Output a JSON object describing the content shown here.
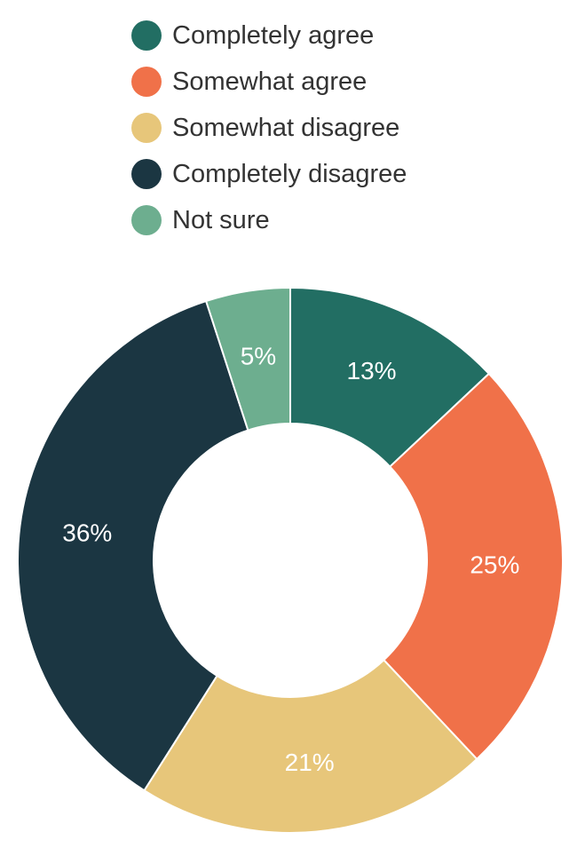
{
  "chart_data": {
    "type": "pie",
    "subtype": "donut",
    "title": "",
    "categories": [
      "Completely agree",
      "Somewhat agree",
      "Somewhat disagree",
      "Completely disagree",
      "Not sure"
    ],
    "values": [
      13,
      25,
      21,
      36,
      5
    ],
    "labels": [
      "13%",
      "25%",
      "21%",
      "36%",
      "5%"
    ],
    "colors": [
      "#226e63",
      "#f07149",
      "#e7c67a",
      "#1b3642",
      "#6dae8f"
    ],
    "unit": "%",
    "legend_position": "top",
    "start_angle_deg": 0,
    "direction": "clockwise"
  },
  "legend": {
    "items": [
      {
        "label": "Completely agree",
        "color": "#226e63"
      },
      {
        "label": "Somewhat agree",
        "color": "#f07149"
      },
      {
        "label": "Somewhat disagree",
        "color": "#e7c67a"
      },
      {
        "label": "Completely disagree",
        "color": "#1b3642"
      },
      {
        "label": "Not sure",
        "color": "#6dae8f"
      }
    ]
  }
}
